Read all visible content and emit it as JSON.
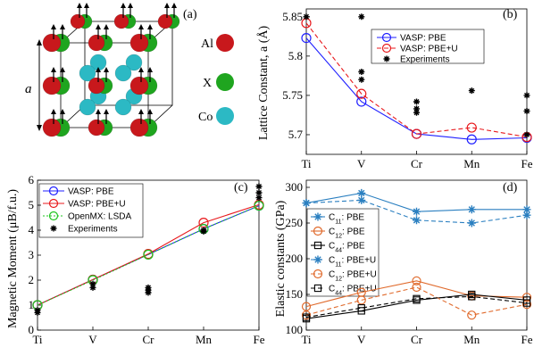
{
  "chart_data": [
    {
      "panel": "(a)",
      "type": "diagram",
      "lattice_label": "a",
      "species": [
        {
          "name": "Al",
          "color": "#c8181c"
        },
        {
          "name": "X",
          "color": "#1fa51f"
        },
        {
          "name": "Co",
          "color": "#2cb9c4"
        }
      ]
    },
    {
      "panel": "(b)",
      "type": "line",
      "categories": [
        "Ti",
        "V",
        "Cr",
        "Mn",
        "Fe"
      ],
      "ylabel": "Lattice Constant,  a (Å)",
      "ylim": [
        5.675,
        5.86
      ],
      "yticks": [
        "5.7",
        "5.75",
        "5.8",
        "5.85"
      ],
      "ytick_values": [
        5.7,
        5.75,
        5.8,
        5.85
      ],
      "legend_position": "top-right",
      "series": [
        {
          "name": "VASP: PBE",
          "color": "#1f1fff",
          "dash": "solid",
          "marker": "circle",
          "values": [
            5.823,
            5.742,
            5.701,
            5.694,
            5.696
          ]
        },
        {
          "name": "VASP: PBE+U",
          "color": "#e8191c",
          "dash": "dashed",
          "marker": "circle",
          "values": [
            5.842,
            5.752,
            5.701,
            5.709,
            5.697
          ]
        },
        {
          "name": "Experiments",
          "color": "#000000",
          "marker": "star",
          "points": [
            {
              "x": "Ti",
              "y": 5.85
            },
            {
              "x": "V",
              "y": 5.85
            },
            {
              "x": "V",
              "y": 5.78
            },
            {
              "x": "V",
              "y": 5.77
            },
            {
              "x": "Cr",
              "y": 5.742
            },
            {
              "x": "Cr",
              "y": 5.733
            },
            {
              "x": "Cr",
              "y": 5.728
            },
            {
              "x": "Mn",
              "y": 5.756
            },
            {
              "x": "Fe",
              "y": 5.75
            },
            {
              "x": "Fe",
              "y": 5.73
            },
            {
              "x": "Fe",
              "y": 5.7
            }
          ]
        }
      ]
    },
    {
      "panel": "(c)",
      "type": "line",
      "categories": [
        "Ti",
        "V",
        "Cr",
        "Mn",
        "Fe"
      ],
      "ylabel": "Magnetic Moment (μB/f.u.)",
      "ylim": [
        0,
        6
      ],
      "yticks": [
        "0",
        "1",
        "2",
        "3",
        "4",
        "5",
        "6"
      ],
      "ytick_values": [
        0,
        1,
        2,
        3,
        4,
        5,
        6
      ],
      "legend_position": "top-left",
      "series": [
        {
          "name": "VASP: PBE",
          "color": "#1f1fff",
          "dash": "solid",
          "marker": "circle",
          "values": [
            1.0,
            2.02,
            3.03,
            4.05,
            4.98
          ]
        },
        {
          "name": "VASP: PBE+U",
          "color": "#e8191c",
          "dash": "solid",
          "marker": "circle",
          "values": [
            1.0,
            2.02,
            3.05,
            4.3,
            5.02
          ]
        },
        {
          "name": "OpenMX: LSDA",
          "color": "#1fc41f",
          "dash": "dotted",
          "marker": "circle",
          "values": [
            1.0,
            2.0,
            3.02,
            4.05,
            4.98
          ]
        },
        {
          "name": "Experiments",
          "color": "#000000",
          "marker": "star",
          "points": [
            {
              "x": "Ti",
              "y": 0.8
            },
            {
              "x": "Ti",
              "y": 0.7
            },
            {
              "x": "V",
              "y": 1.85
            },
            {
              "x": "V",
              "y": 1.7
            },
            {
              "x": "Cr",
              "y": 1.7
            },
            {
              "x": "Cr",
              "y": 1.6
            },
            {
              "x": "Cr",
              "y": 1.5
            },
            {
              "x": "Mn",
              "y": 4.0
            },
            {
              "x": "Mn",
              "y": 3.95
            },
            {
              "x": "Fe",
              "y": 5.75
            },
            {
              "x": "Fe",
              "y": 5.5
            },
            {
              "x": "Fe",
              "y": 5.3
            }
          ]
        }
      ]
    },
    {
      "panel": "(d)",
      "type": "line",
      "categories": [
        "Ti",
        "V",
        "Cr",
        "Mn",
        "Fe"
      ],
      "ylabel": "Elastic constants (GPa)",
      "ylim": [
        100,
        310
      ],
      "yticks": [
        "100",
        "150",
        "200",
        "250",
        "300"
      ],
      "ytick_values": [
        100,
        150,
        200,
        250,
        300
      ],
      "legend_position": "center-left",
      "series": [
        {
          "name": "C11: PBE",
          "sub": "11",
          "suffix": ": PBE",
          "color": "#2a7fc0",
          "dash": "solid",
          "marker": "star",
          "values": [
            278,
            292,
            266,
            269,
            269
          ]
        },
        {
          "name": "C12: PBE",
          "sub": "12",
          "suffix": ": PBE",
          "color": "#e06a2c",
          "dash": "solid",
          "marker": "circle",
          "values": [
            133,
            153,
            169,
            148,
            146
          ]
        },
        {
          "name": "C44: PBE",
          "sub": "44",
          "suffix": ": PBE",
          "color": "#000000",
          "dash": "solid",
          "marker": "square",
          "values": [
            116,
            127,
            142,
            150,
            142
          ]
        },
        {
          "name": "C11: PBE+U",
          "sub": "11",
          "suffix": ": PBE+U",
          "color": "#2a7fc0",
          "dash": "dashed",
          "marker": "star",
          "values": [
            278,
            282,
            254,
            250,
            261
          ]
        },
        {
          "name": "C12: PBE+U",
          "sub": "12",
          "suffix": ": PBE+U",
          "color": "#e06a2c",
          "dash": "dashed",
          "marker": "circle",
          "values": [
            121,
            142,
            160,
            121,
            136
          ]
        },
        {
          "name": "C44: PBE+U",
          "sub": "44",
          "suffix": ": PBE+U",
          "color": "#000000",
          "dash": "dashed",
          "marker": "square",
          "values": [
            118,
            131,
            144,
            147,
            138
          ]
        }
      ]
    }
  ]
}
